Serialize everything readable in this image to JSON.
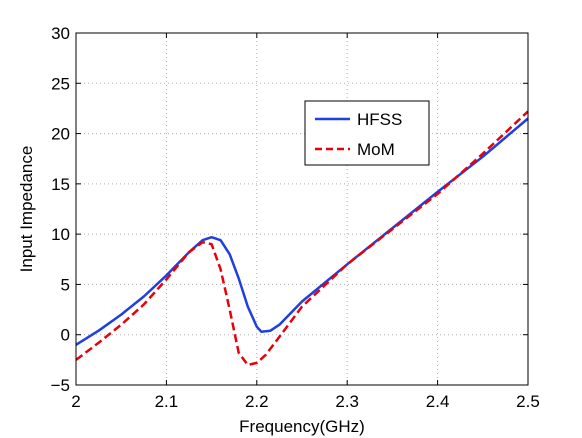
{
  "chart_data": {
    "type": "line",
    "title": "",
    "xlabel": "Frequency(GHz)",
    "ylabel": "Input Impedance",
    "xlim": [
      2,
      2.5
    ],
    "ylim": [
      -5,
      30
    ],
    "xticks": [
      2,
      2.1,
      2.2,
      2.3,
      2.4,
      2.5
    ],
    "xtick_labels": [
      "2",
      "2.1",
      "2.2",
      "2.3",
      "2.4",
      "2.5"
    ],
    "yticks": [
      -5,
      0,
      5,
      10,
      15,
      20,
      25,
      30
    ],
    "ytick_labels": [
      "−5",
      "0",
      "5",
      "10",
      "15",
      "20",
      "25",
      "30"
    ],
    "grid": true,
    "legend_position": "upper-center-right",
    "series": [
      {
        "name": "HFSS",
        "color": "#1f3fe0",
        "style": "solid",
        "x": [
          2.0,
          2.025,
          2.05,
          2.075,
          2.1,
          2.125,
          2.14,
          2.15,
          2.16,
          2.17,
          2.18,
          2.19,
          2.2,
          2.205,
          2.215,
          2.225,
          2.25,
          2.3,
          2.35,
          2.4,
          2.45,
          2.5
        ],
        "y": [
          -1.0,
          0.4,
          2.0,
          3.8,
          5.9,
          8.2,
          9.4,
          9.7,
          9.4,
          8.0,
          5.6,
          2.8,
          0.8,
          0.3,
          0.4,
          1.0,
          3.3,
          7.0,
          10.6,
          14.2,
          17.7,
          21.5
        ]
      },
      {
        "name": "MoM",
        "color": "#e8000b",
        "style": "dashed",
        "x": [
          2.0,
          2.025,
          2.05,
          2.075,
          2.1,
          2.125,
          2.14,
          2.15,
          2.16,
          2.17,
          2.18,
          2.19,
          2.2,
          2.21,
          2.22,
          2.25,
          2.3,
          2.35,
          2.4,
          2.45,
          2.5
        ],
        "y": [
          -2.5,
          -0.8,
          1.0,
          3.0,
          5.5,
          8.2,
          9.2,
          9.0,
          6.5,
          2.5,
          -1.8,
          -3.0,
          -2.8,
          -2.0,
          -0.8,
          2.8,
          7.0,
          10.5,
          14.0,
          18.0,
          22.2
        ]
      }
    ]
  }
}
